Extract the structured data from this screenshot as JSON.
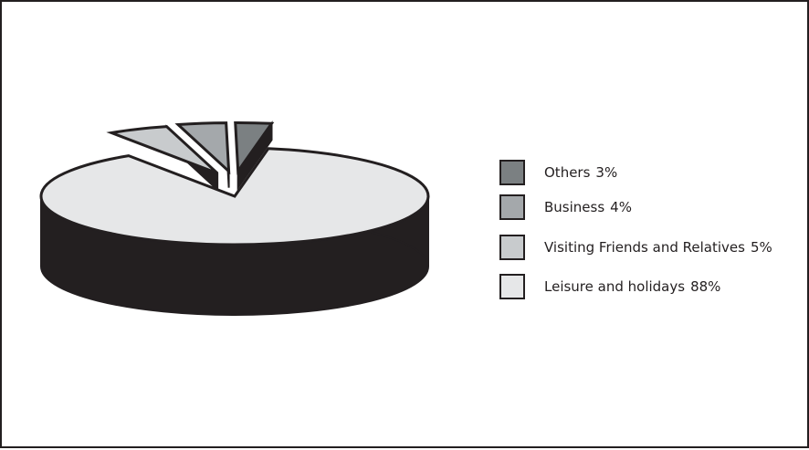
{
  "chart_data": {
    "type": "pie",
    "style": "3d-exploded",
    "title": "",
    "slices": [
      {
        "label": "Others",
        "value": 3,
        "value_label": "3%",
        "color": "#7b8082"
      },
      {
        "label": "Business",
        "value": 4,
        "value_label": "4%",
        "color": "#a4a8ab"
      },
      {
        "label": "Visiting Friends and Relatives",
        "value": 5,
        "value_label": "5%",
        "color": "#c8cbcd"
      },
      {
        "label": "Leisure and holidays",
        "value": 88,
        "value_label": "88%",
        "color": "#e6e7e8"
      }
    ],
    "legend_position": "right"
  },
  "colors": {
    "outline": "#231f20",
    "side": "#231f20",
    "frame": "#231f20",
    "background": "#ffffff"
  }
}
